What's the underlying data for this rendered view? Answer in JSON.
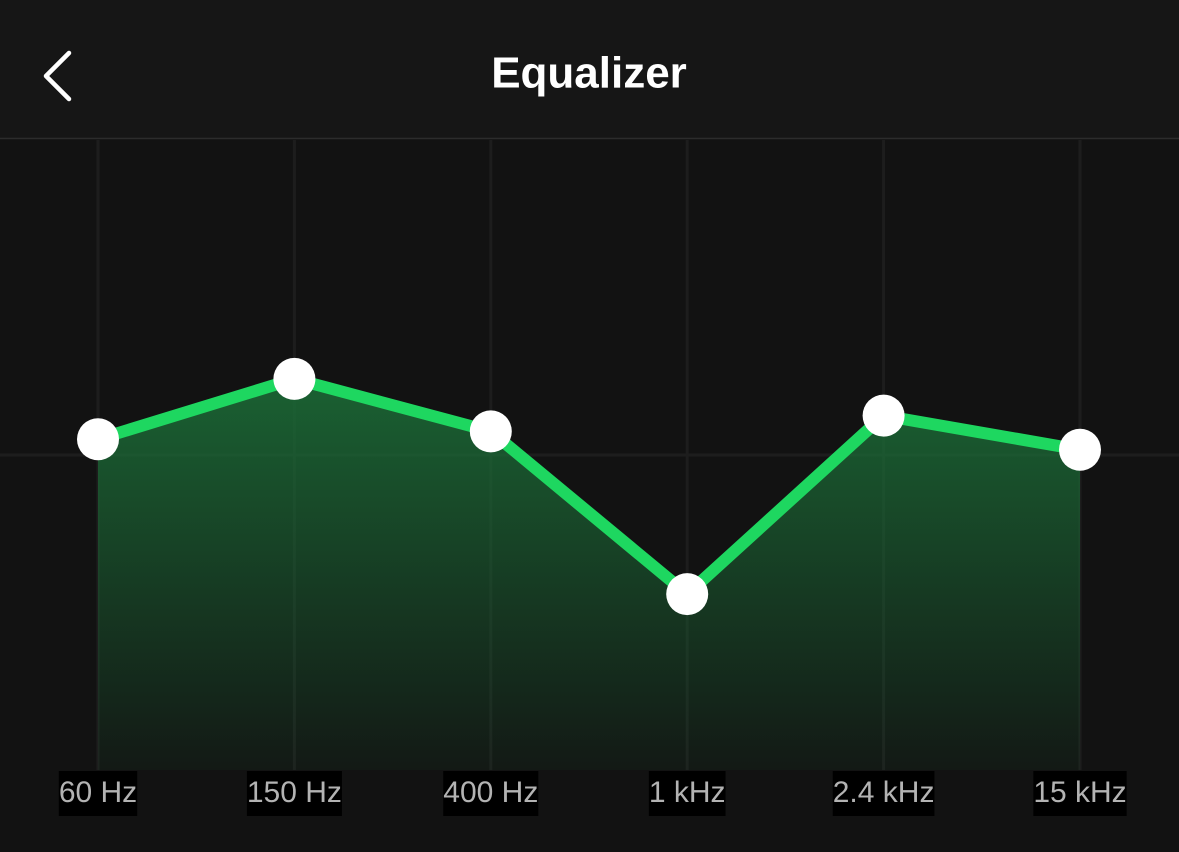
{
  "header": {
    "title": "Equalizer"
  },
  "chart_data": {
    "type": "line",
    "categories": [
      "60 Hz",
      "150 Hz",
      "400 Hz",
      "1 kHz",
      "2.4 kHz",
      "15 kHz"
    ],
    "values": [
      0.6,
      2.9,
      0.9,
      -5.3,
      1.5,
      0.2
    ],
    "color": "#1ed760",
    "ylim": [
      -12,
      12
    ]
  }
}
